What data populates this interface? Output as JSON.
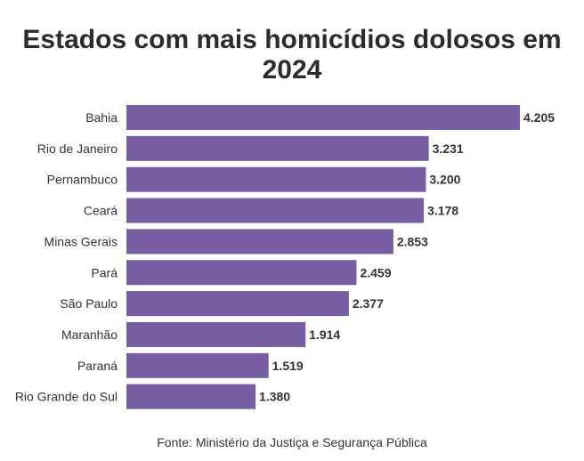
{
  "chart_data": {
    "type": "bar",
    "orientation": "horizontal",
    "title_line1": "Estados com mais homicídios dolosos em",
    "title_line2": "2024",
    "categories": [
      "Bahia",
      "Rio de Janeiro",
      "Pernambuco",
      "Ceará",
      "Minas Gerais",
      "Pará",
      "São Paulo",
      "Maranhão",
      "Paraná",
      "Rio Grande do Sul"
    ],
    "values": [
      4205,
      3231,
      3200,
      3178,
      2853,
      2459,
      2377,
      1914,
      1519,
      1380
    ],
    "value_labels": [
      "4.205",
      "3.231",
      "3.200",
      "3.178",
      "2.853",
      "2.459",
      "2.377",
      "1.914",
      "1.519",
      "1.380"
    ],
    "xlim": [
      0,
      4205
    ],
    "grid": false,
    "legend": "none",
    "bar_color": "#775da2",
    "source": "Fonte: Ministério da Justiça e Segurança Pública"
  }
}
